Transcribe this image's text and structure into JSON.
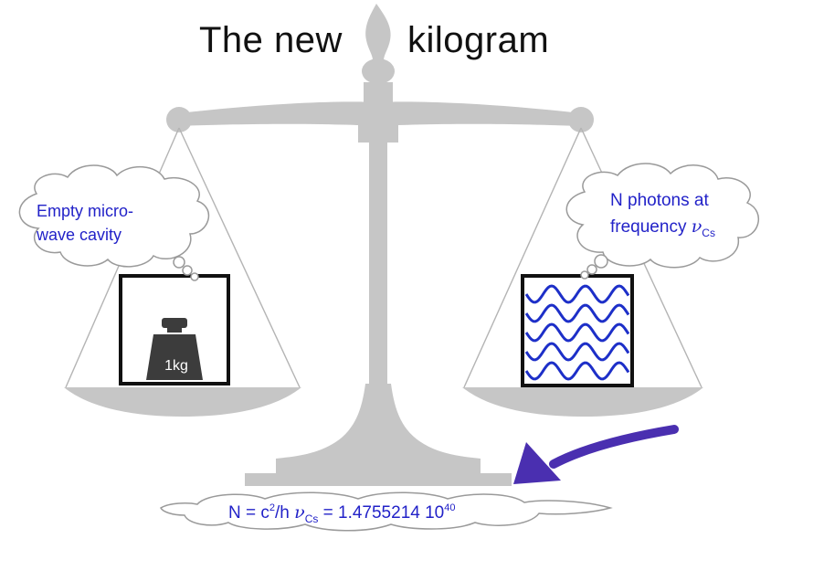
{
  "title": {
    "left": "The new",
    "right": "kilogram"
  },
  "left_cloud": {
    "line1": "Empty micro-",
    "line2": "wave cavity"
  },
  "right_cloud": {
    "line1": "N photons at",
    "line2_prefix": "frequency ",
    "nu_symbol": "ν",
    "nu_subscript": "Cs"
  },
  "weight": {
    "label": "1kg"
  },
  "formula": {
    "lhs": "N = c",
    "c_exp": "2",
    "after_exp": "/h ",
    "nu_symbol": "ν",
    "nu_subscript": "Cs",
    "rhs": " = 1.4755214 10",
    "exp": "40"
  },
  "colors": {
    "scale_gray": "#c6c6c6",
    "text_blue": "#2222c8",
    "wave_blue": "#1d2fc8",
    "arrow_purple": "#4a2fb0",
    "weight_dark": "#3c3c3c",
    "cloud_border": "#9a9a9a"
  }
}
